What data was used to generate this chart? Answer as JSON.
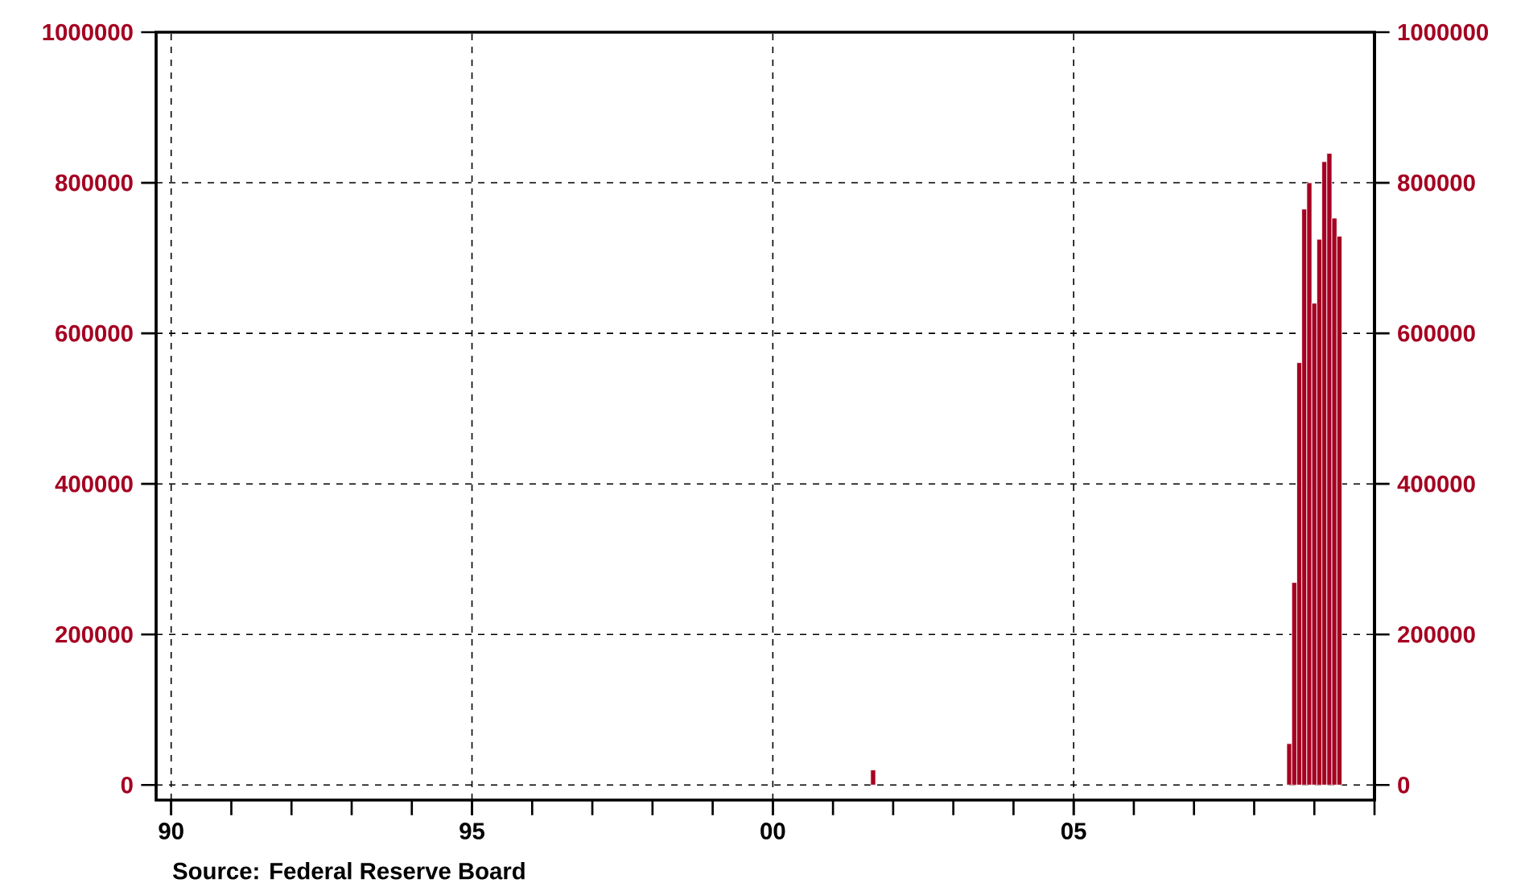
{
  "chart_data": {
    "type": "bar",
    "color": "#a50021",
    "x": [
      "2001-09",
      "2008-08",
      "2008-09",
      "2008-10",
      "2008-11",
      "2008-12",
      "2009-01",
      "2009-02",
      "2009-03",
      "2009-04",
      "2009-05",
      "2009-06"
    ],
    "values": [
      20000,
      55000,
      269000,
      561000,
      765000,
      800000,
      640000,
      725000,
      828000,
      839000,
      753000,
      729000
    ],
    "xlim": [
      "1989-10",
      "2010-01"
    ],
    "xticks": [
      {
        "value": "1990-01",
        "label": "90"
      },
      {
        "value": "1991-01",
        "label": null
      },
      {
        "value": "1992-01",
        "label": null
      },
      {
        "value": "1993-01",
        "label": null
      },
      {
        "value": "1994-01",
        "label": null
      },
      {
        "value": "1995-01",
        "label": "95"
      },
      {
        "value": "1996-01",
        "label": null
      },
      {
        "value": "1997-01",
        "label": null
      },
      {
        "value": "1998-01",
        "label": null
      },
      {
        "value": "1999-01",
        "label": null
      },
      {
        "value": "2000-01",
        "label": "00"
      },
      {
        "value": "2001-01",
        "label": null
      },
      {
        "value": "2002-01",
        "label": null
      },
      {
        "value": "2003-01",
        "label": null
      },
      {
        "value": "2004-01",
        "label": null
      },
      {
        "value": "2005-01",
        "label": "05"
      },
      {
        "value": "2006-01",
        "label": null
      },
      {
        "value": "2007-01",
        "label": null
      },
      {
        "value": "2008-01",
        "label": null
      },
      {
        "value": "2009-01",
        "label": null
      },
      {
        "value": "2010-01",
        "label": null
      }
    ],
    "ylim": [
      -20000,
      1000000
    ],
    "yticks": [
      0,
      200000,
      400000,
      600000,
      800000,
      1000000
    ],
    "y2lim": [
      -20000,
      1000000
    ],
    "y2ticks": [
      0,
      200000,
      400000,
      600000,
      800000,
      1000000
    ],
    "grid": true,
    "annotations": [
      "Source:  Federal Reserve Board"
    ]
  }
}
